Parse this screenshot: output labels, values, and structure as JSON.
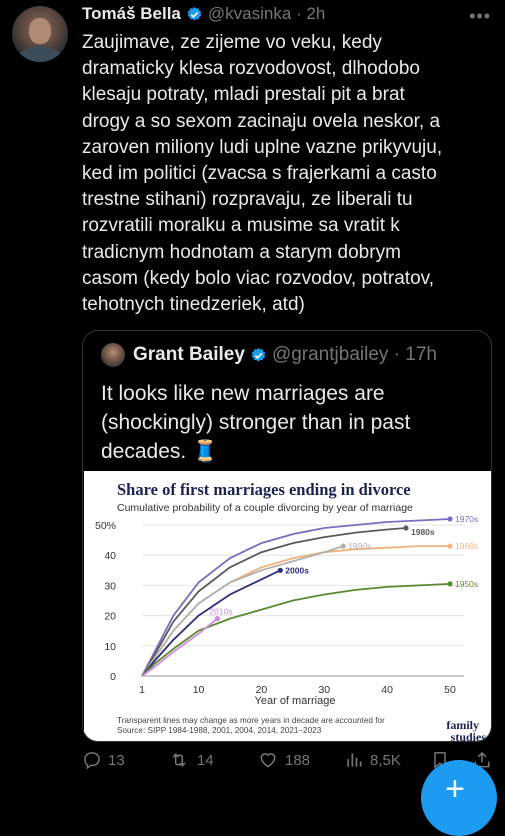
{
  "tweet": {
    "author_name": "Tomáš Bella",
    "handle": "@kvasinka",
    "time": "2h",
    "more_icon": "more-icon",
    "text": "Zaujimave, ze zijeme vo veku, kedy\ndramaticky klesa rozvodovost, dlhodobo\nklesaju potraty, mladi prestali pit a brat\ndrogy a so sexom zacinaju ovela neskor, a\nzaroven miliony ludi uplne vazne prikyvuju,\nked im politici (zvacsa s frajerkami a casto\ntrestne stihani) rozpravaju, ze liberali tu\nrozvratili moralku a musime sa vratit k\ntradicnym hodnotam a starym dobrym\ncasom (kedy bolo viac rozvodov, potratov,\ntehotnych tinedzeriek, atd)"
  },
  "quote": {
    "author_name": "Grant Bailey",
    "handle": "@grantjbailey",
    "time": "17h",
    "text": "It looks like new marriages are\n(shockingly) stronger than in past\ndecades. 🧵"
  },
  "actions": {
    "replies": "13",
    "retweets": "14",
    "likes": "188",
    "views": "8,5K"
  },
  "colors": {
    "accent": "#1d9bf0",
    "background": "#000000",
    "muted": "#71767b"
  },
  "chart_data": {
    "type": "line",
    "title": "Share of first marriages ending in divorce",
    "subtitle": "Cumulative probability of a couple divorcing by year of marriage",
    "xlabel": "Year of marriage",
    "ylabel": "",
    "xticks": [
      1,
      10,
      20,
      30,
      40,
      50
    ],
    "yticks": [
      "0",
      "10",
      "20",
      "30",
      "40",
      "50%"
    ],
    "xlim": [
      1,
      50
    ],
    "ylim": [
      0,
      50
    ],
    "series": [
      {
        "name": "1970s",
        "color": "#7b6cc0",
        "x": [
          1,
          3,
          6,
          10,
          15,
          20,
          25,
          30,
          35,
          40,
          45,
          50
        ],
        "y": [
          0,
          8,
          20,
          31,
          39,
          44,
          47,
          49,
          50,
          51,
          51.5,
          52
        ]
      },
      {
        "name": "1980s",
        "color": "#5a5a5a",
        "x": [
          1,
          3,
          6,
          10,
          15,
          20,
          25,
          30,
          35,
          40,
          43
        ],
        "y": [
          0,
          7,
          18,
          28,
          36,
          41,
          44,
          46,
          47.5,
          48.5,
          49
        ]
      },
      {
        "name": "1960s",
        "color": "#f2b27a",
        "x": [
          1,
          3,
          6,
          10,
          15,
          20,
          25,
          30,
          35,
          40,
          45,
          50
        ],
        "y": [
          0,
          6,
          15,
          24,
          31,
          36,
          39,
          41,
          42,
          42.5,
          43,
          43
        ]
      },
      {
        "name": "1990s",
        "color": "#b0b0b0",
        "x": [
          1,
          3,
          6,
          10,
          15,
          20,
          25,
          30,
          33
        ],
        "y": [
          0,
          6,
          15,
          24,
          31,
          35,
          38,
          41,
          43
        ]
      },
      {
        "name": "2000s",
        "color": "#2b2f7a",
        "x": [
          1,
          3,
          6,
          10,
          15,
          20,
          23
        ],
        "y": [
          0,
          5,
          12,
          20,
          27,
          32,
          35
        ]
      },
      {
        "name": "1950s",
        "color": "#5a8a2e",
        "x": [
          1,
          3,
          6,
          10,
          15,
          20,
          25,
          30,
          35,
          40,
          45,
          50
        ],
        "y": [
          0,
          4,
          9,
          15,
          19,
          22,
          25,
          27,
          28.5,
          29.5,
          30,
          30.5
        ]
      },
      {
        "name": "2010s",
        "color": "#d08ae0",
        "x": [
          1,
          3,
          6,
          10,
          13
        ],
        "y": [
          0,
          3,
          8,
          14,
          19
        ]
      }
    ],
    "footnote1": "Transparent lines may change as more years in decade are accounted for",
    "footnote2": "Source: SIPP 1984-1988, 2001, 2004, 2014, 2021–2023",
    "logo": "family studies"
  }
}
